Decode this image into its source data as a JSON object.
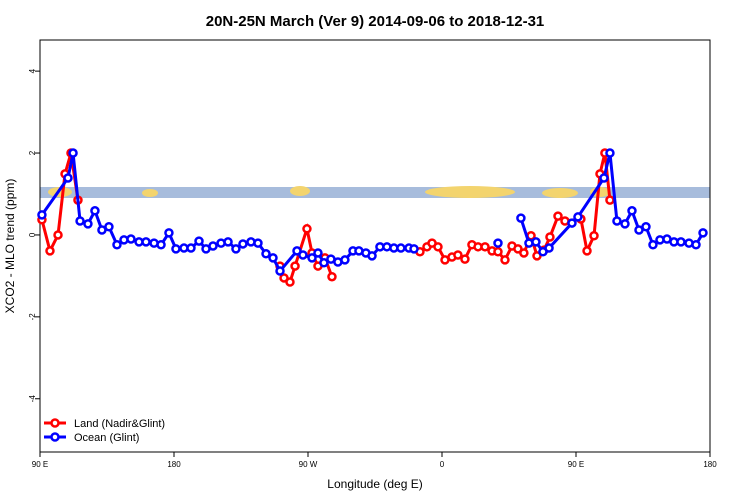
{
  "chart_data": {
    "type": "line",
    "title": "20N-25N March (Ver 9)   2014-09-06 to 2018-12-31",
    "x_label": "Longitude (deg E)",
    "y_label": "XCO2 - MLO trend (ppm)",
    "xlim": [
      90,
      540
    ],
    "ylim": [
      -5.3,
      4.76
    ],
    "xticks": [
      {
        "value": 90,
        "label": "90 E"
      },
      180,
      {
        "value": 270,
        "label": "90 W"
      },
      {
        "value": 360,
        "label": "0"
      },
      {
        "value": 450,
        "label": "90 E"
      },
      {
        "value": 540,
        "label": "180"
      }
    ],
    "yticks": [
      -4,
      -2,
      0,
      2,
      4
    ],
    "legend": "bottom-left",
    "series": [
      {
        "name": "Land (Nadir&Glint)",
        "color": "#ff0000",
        "x": [
          91.3,
          96.7,
          102.1,
          106.8,
          110.8,
          115.5,
          null,
          251.2,
          253.9,
          257.9,
          261.3,
          269.3,
          272.7,
          276.7,
          281.4,
          286.1,
          null,
          345.2,
          349.9,
          353.3,
          357.3,
          362.0,
          366.7,
          370.7,
          375.4,
          380.1,
          384.2,
          388.9,
          393.6,
          397.6,
          402.3,
          407.0,
          411.0,
          415.0,
          419.8,
          423.8,
          428.5,
          432.5,
          437.9,
          442.6,
          453.3,
          457.4,
          462.1,
          466.1,
          469.4,
          472.8
        ],
        "values": [
          0.37,
          -0.39,
          0,
          1.49,
          2.0,
          0.85,
          null,
          -0.76,
          -1.05,
          -1.15,
          -0.76,
          0.15,
          -0.44,
          -0.76,
          -0.56,
          -1.02,
          null,
          -0.41,
          -0.29,
          -0.2,
          -0.29,
          -0.61,
          -0.54,
          -0.49,
          -0.59,
          -0.24,
          -0.29,
          -0.29,
          -0.39,
          -0.41,
          -0.61,
          -0.27,
          -0.34,
          -0.44,
          -0.02,
          -0.51,
          -0.37,
          -0.05,
          0.46,
          0.34,
          0.39,
          -0.39,
          -0.02,
          1.49,
          2.0,
          0.85
        ]
      },
      {
        "name": "Ocean (Glint)",
        "color": "#0000ff",
        "x": [
          91.3,
          108.8,
          112.2,
          116.9,
          122.2,
          126.9,
          131.6,
          136.3,
          141.7,
          146.4,
          151.1,
          156.5,
          161.2,
          166.6,
          171.3,
          176.6,
          181.3,
          186.7,
          191.4,
          196.8,
          201.5,
          206.2,
          211.6,
          216.3,
          221.6,
          226.3,
          231.7,
          236.4,
          241.8,
          246.5,
          251.2,
          262.6,
          266.6,
          272.7,
          276.7,
          280.7,
          285.4,
          290.1,
          294.8,
          300.2,
          304.2,
          308.9,
          313.0,
          318.3,
          323.0,
          327.7,
          332.4,
          337.8,
          341.2,
          null,
          397.6,
          null,
          413.0,
          418.4,
          423.1,
          427.8,
          431.9,
          447.3,
          451.3,
          468.8,
          472.8,
          477.5,
          482.9,
          487.6,
          492.3,
          497.0,
          501.7,
          506.4,
          511.1,
          515.8,
          520.5,
          525.9,
          530.6,
          535.3
        ],
        "values": [
          0.49,
          1.39,
          2.0,
          0.34,
          0.27,
          0.59,
          0.12,
          0.2,
          -0.24,
          -0.12,
          -0.1,
          -0.17,
          -0.17,
          -0.2,
          -0.24,
          0.05,
          -0.34,
          -0.32,
          -0.32,
          -0.15,
          -0.34,
          -0.27,
          -0.2,
          -0.17,
          -0.34,
          -0.22,
          -0.17,
          -0.2,
          -0.46,
          -0.56,
          -0.88,
          -0.39,
          -0.49,
          -0.56,
          -0.44,
          -0.68,
          -0.59,
          -0.66,
          -0.61,
          -0.39,
          -0.39,
          -0.44,
          -0.51,
          -0.29,
          -0.29,
          -0.32,
          -0.32,
          -0.32,
          -0.34,
          null,
          -0.2,
          null,
          0.41,
          -0.2,
          -0.17,
          -0.41,
          -0.32,
          0.29,
          0.44,
          1.39,
          2.0,
          0.34,
          0.27,
          0.59,
          0.12,
          0.2,
          -0.24,
          -0.12,
          -0.1,
          -0.17,
          -0.17,
          -0.2,
          -0.24,
          0.05
        ]
      }
    ]
  }
}
